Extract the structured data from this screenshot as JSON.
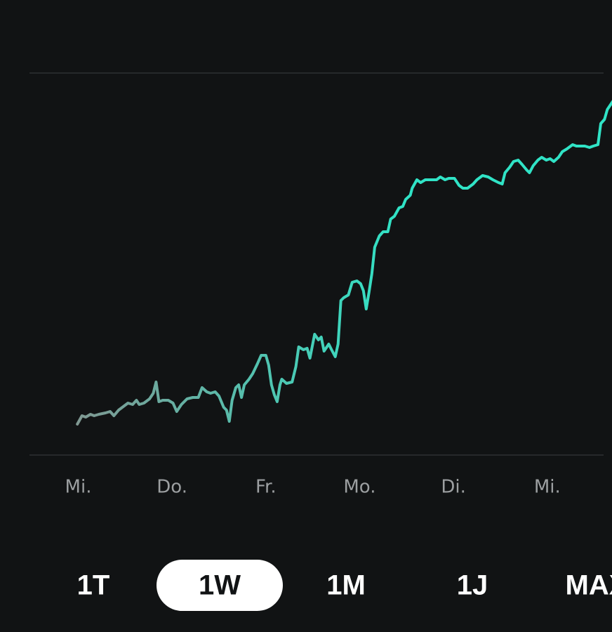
{
  "chart_data": {
    "type": "line",
    "colors": [
      "#7f9892",
      "#30e3c6"
    ],
    "grid": true,
    "xlim": [
      -0.52,
      5.69
    ],
    "ylim": [
      0,
      544
    ],
    "xticks": [
      {
        "value": 0,
        "label": "Mi."
      },
      {
        "value": 1,
        "label": "Do."
      },
      {
        "value": 2,
        "label": "Fr."
      },
      {
        "value": 3,
        "label": "Mo."
      },
      {
        "value": 4,
        "label": "Di."
      },
      {
        "value": 5,
        "label": "Mi."
      }
    ],
    "x": [
      -0.01,
      0.04,
      0.08,
      0.13,
      0.17,
      0.22,
      0.29,
      0.34,
      0.38,
      0.43,
      0.49,
      0.53,
      0.58,
      0.62,
      0.65,
      0.7,
      0.76,
      0.8,
      0.83,
      0.86,
      0.9,
      0.96,
      1.01,
      1.05,
      1.1,
      1.16,
      1.22,
      1.28,
      1.32,
      1.37,
      1.41,
      1.46,
      1.5,
      1.55,
      1.58,
      1.61,
      1.64,
      1.68,
      1.71,
      1.74,
      1.77,
      1.82,
      1.86,
      1.91,
      1.95,
      2.0,
      2.03,
      2.06,
      2.09,
      2.12,
      2.15,
      2.17,
      2.22,
      2.28,
      2.32,
      2.35,
      2.4,
      2.44,
      2.47,
      2.52,
      2.56,
      2.59,
      2.62,
      2.67,
      2.7,
      2.74,
      2.77,
      2.8,
      2.83,
      2.88,
      2.92,
      2.97,
      3.01,
      3.04,
      3.07,
      3.1,
      3.13,
      3.16,
      3.21,
      3.25,
      3.3,
      3.33,
      3.37,
      3.42,
      3.46,
      3.49,
      3.54,
      3.56,
      3.61,
      3.65,
      3.7,
      3.76,
      3.82,
      3.86,
      3.91,
      3.95,
      4.01,
      4.06,
      4.1,
      4.15,
      4.21,
      4.25,
      4.31,
      4.37,
      4.42,
      4.48,
      4.52,
      4.55,
      4.6,
      4.64,
      4.69,
      4.73,
      4.78,
      4.81,
      4.85,
      4.9,
      4.94,
      4.99,
      5.03,
      5.07,
      5.12,
      5.16,
      5.21,
      5.27,
      5.31,
      5.36,
      5.4,
      5.45,
      5.49,
      5.54,
      5.57,
      5.61,
      5.64,
      5.67,
      5.72
    ],
    "values": [
      44,
      56,
      54,
      58,
      56,
      58,
      60,
      62,
      56,
      64,
      70,
      74,
      72,
      78,
      72,
      74,
      80,
      88,
      104,
      76,
      78,
      78,
      74,
      62,
      72,
      80,
      82,
      82,
      96,
      90,
      88,
      90,
      84,
      68,
      64,
      48,
      78,
      96,
      100,
      82,
      100,
      108,
      116,
      130,
      142,
      142,
      128,
      100,
      86,
      76,
      100,
      108,
      102,
      104,
      126,
      154,
      150,
      152,
      138,
      172,
      164,
      168,
      148,
      158,
      150,
      140,
      158,
      220,
      224,
      228,
      246,
      248,
      244,
      234,
      208,
      232,
      258,
      296,
      312,
      318,
      318,
      336,
      340,
      352,
      354,
      364,
      370,
      380,
      392,
      388,
      392,
      392,
      392,
      396,
      392,
      394,
      394,
      384,
      380,
      380,
      386,
      392,
      398,
      396,
      392,
      388,
      386,
      402,
      410,
      418,
      420,
      414,
      406,
      402,
      412,
      420,
      424,
      420,
      422,
      418,
      424,
      432,
      436,
      442,
      440,
      440,
      440,
      438,
      440,
      442,
      472,
      478,
      492,
      498,
      508
    ]
  },
  "timeframes": {
    "options": [
      "1T",
      "1W",
      "1M",
      "1J",
      "MAX"
    ],
    "selected": 1
  }
}
